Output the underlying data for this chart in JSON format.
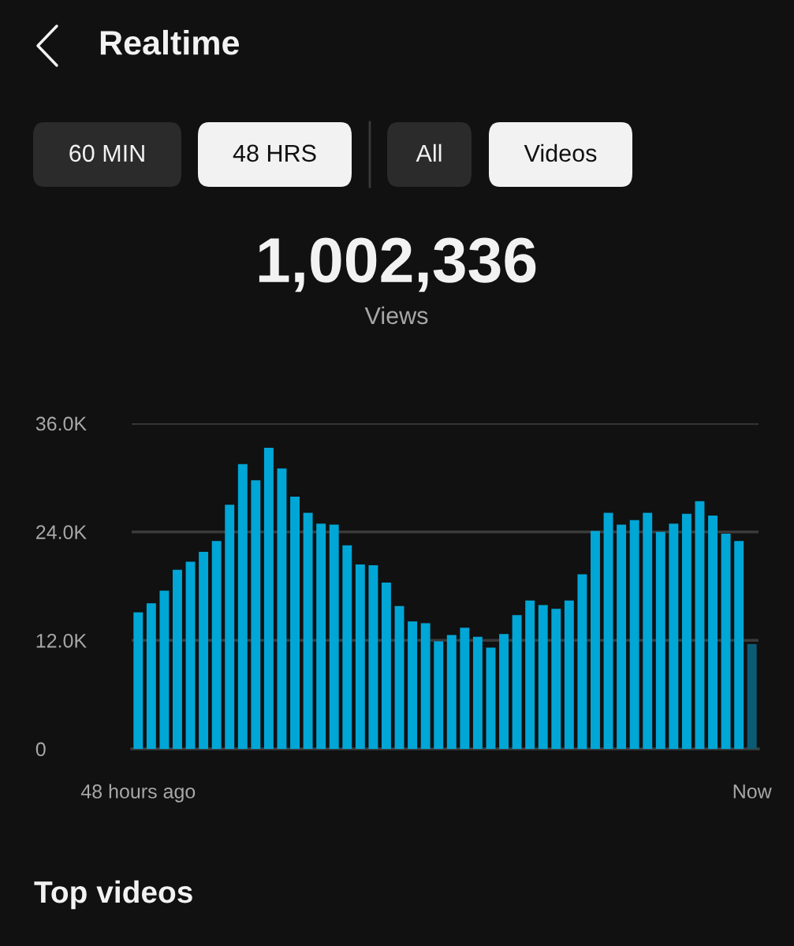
{
  "chart_data": {
    "type": "bar",
    "title": "Realtime",
    "annotations": [
      "60 MIN",
      "48 HRS",
      "All",
      "Videos",
      "1,002,336",
      "Views",
      "Top videos"
    ],
    "categories": [
      "48 hours ago",
      null,
      null,
      null,
      null,
      null,
      null,
      null,
      null,
      null,
      null,
      null,
      null,
      null,
      null,
      null,
      null,
      null,
      null,
      null,
      null,
      null,
      null,
      null,
      null,
      null,
      null,
      null,
      null,
      null,
      null,
      null,
      null,
      null,
      null,
      null,
      null,
      null,
      null,
      null,
      null,
      null,
      null,
      null,
      null,
      null,
      null,
      "Now"
    ],
    "values": [
      15100,
      16100,
      17500,
      19800,
      20700,
      21800,
      23000,
      27000,
      31500,
      29700,
      33300,
      31000,
      27900,
      26100,
      24900,
      24800,
      22500,
      20400,
      20300,
      18400,
      15800,
      14100,
      13900,
      11900,
      12600,
      13400,
      12400,
      11200,
      12700,
      14800,
      16400,
      15900,
      15500,
      16400,
      19300,
      24100,
      26100,
      24800,
      25300,
      26100,
      24000,
      24900,
      26000,
      27400,
      25800,
      23800,
      23000,
      11600
    ],
    "colors": [
      "#00a6d6",
      "#00a6d6",
      "#00a6d6",
      "#00a6d6",
      "#00a6d6",
      "#00a6d6",
      "#00a6d6",
      "#00a6d6",
      "#00a6d6",
      "#00a6d6",
      "#00a6d6",
      "#00a6d6",
      "#00a6d6",
      "#00a6d6",
      "#00a6d6",
      "#00a6d6",
      "#00a6d6",
      "#00a6d6",
      "#00a6d6",
      "#00a6d6",
      "#00a6d6",
      "#00a6d6",
      "#00a6d6",
      "#00a6d6",
      "#00a6d6",
      "#00a6d6",
      "#00a6d6",
      "#00a6d6",
      "#00a6d6",
      "#00a6d6",
      "#00a6d6",
      "#00a6d6",
      "#00a6d6",
      "#00a6d6",
      "#00a6d6",
      "#00a6d6",
      "#00a6d6",
      "#00a6d6",
      "#00a6d6",
      "#00a6d6",
      "#00a6d6",
      "#00a6d6",
      "#00a6d6",
      "#00a6d6",
      "#00a6d6",
      "#00a6d6",
      "#00a6d6",
      "#0b5b74"
    ],
    "ylim": [
      0,
      36000
    ],
    "yticks": [
      0,
      {
        "value": 12000,
        "label": "12.0K"
      },
      {
        "value": 24000,
        "label": "24.0K"
      },
      {
        "value": 36000,
        "label": "36.0K"
      }
    ],
    "grid": "y"
  }
}
